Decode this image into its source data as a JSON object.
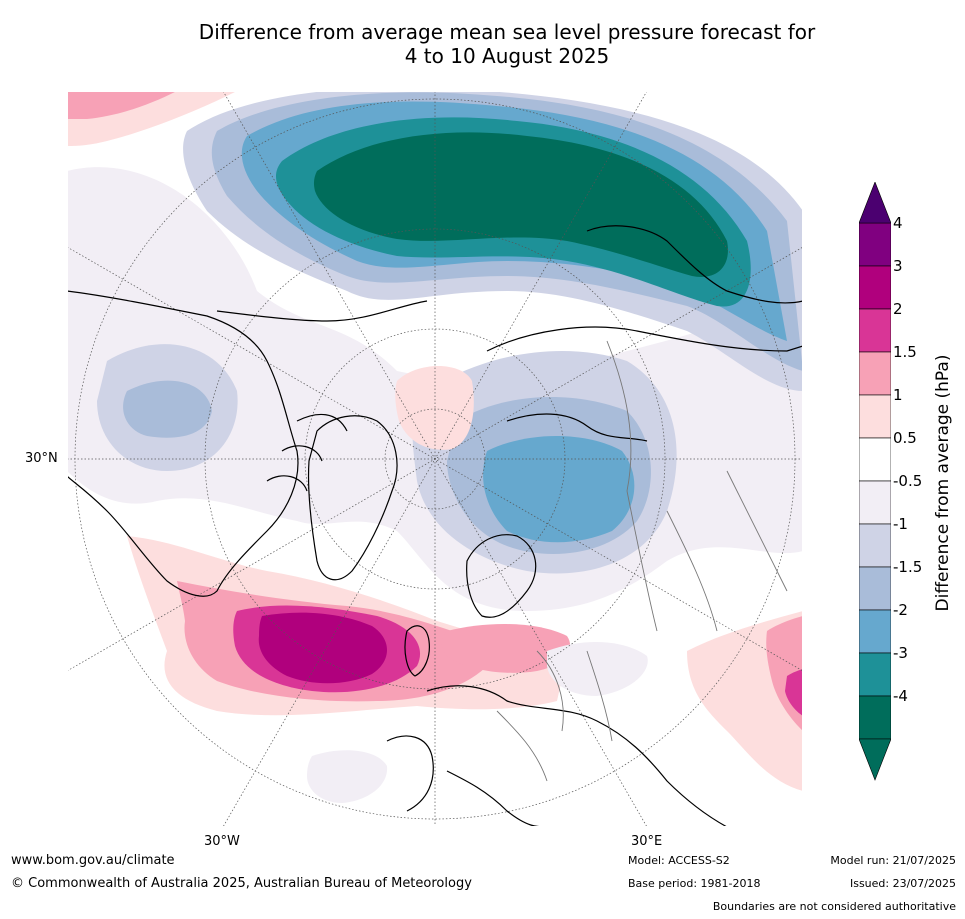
{
  "title_line1": "Difference from average mean sea level pressure forecast for",
  "title_line2": "4 to 10 August 2025",
  "map_labels": {
    "lat_30n": "30°N",
    "lon_30w": "30°W",
    "lon_30e": "30°E"
  },
  "colorbar": {
    "label": "Difference from average (hPa)",
    "ticks": [
      "4",
      "3",
      "2",
      "1.5",
      "1",
      "0.5",
      "-0.5",
      "-1",
      "-1.5",
      "-2",
      "-3",
      "-4"
    ],
    "colors": [
      "#800080",
      "#b0007d",
      "#d93596",
      "#f7a1b6",
      "#fddede",
      "#ffffff",
      "#f2eef5",
      "#cfd3e6",
      "#a9bcd9",
      "#66a8ce",
      "#1e9198",
      "#006d5b"
    ],
    "over_color": "#4b0070",
    "under_color": "#006d5b"
  },
  "footer": {
    "website": "www.bom.gov.au/climate",
    "copyright": "© Commonwealth of Australia 2025, Australian Bureau of Meteorology",
    "model": "Model: ACCESS-S2",
    "base_period": "Base period: 1981-2018",
    "model_run": "Model run: 21/07/2025",
    "issued": "Issued: 23/07/2025",
    "disclaimer": "Boundaries are not considered authoritative"
  }
}
